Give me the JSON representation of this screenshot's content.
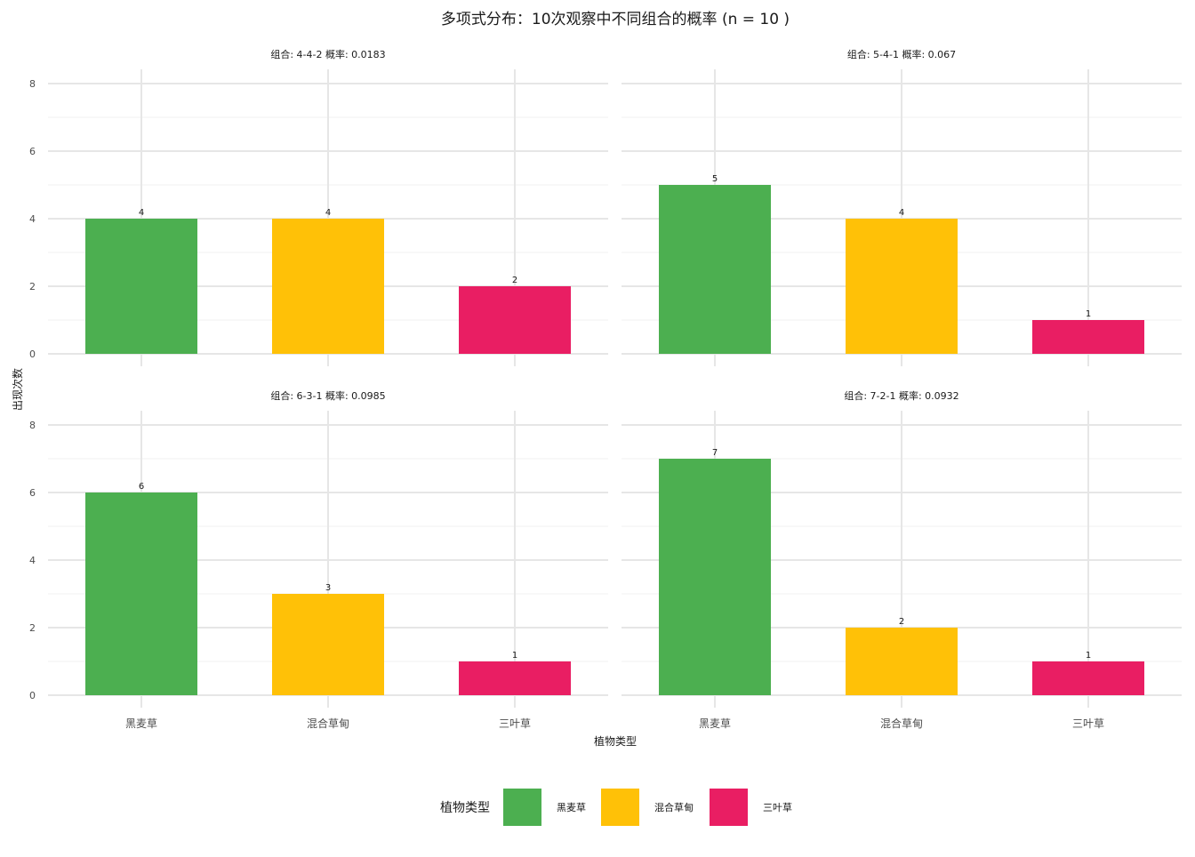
{
  "chart_data": {
    "type": "bar",
    "title": "多项式分布：10次观察中不同组合的概率 (n = 10 )",
    "xlabel": "植物类型",
    "ylabel": "出现次数",
    "categories": [
      "黑麦草",
      "混合草甸",
      "三叶草"
    ],
    "colors": [
      "#4CAF50",
      "#FFC107",
      "#E91E63"
    ],
    "ylim": [
      0,
      8
    ],
    "y_ticks": [
      "0",
      "2",
      "4",
      "6",
      "8"
    ],
    "grid": true,
    "legend": {
      "title": "植物类型",
      "position": "bottom",
      "entries": [
        "黑麦草",
        "混合草甸",
        "三叶草"
      ]
    },
    "facets": [
      {
        "label": "组合: 4-4-2  概率: 0.0183",
        "values": [
          4,
          4,
          2
        ]
      },
      {
        "label": "组合: 5-4-1  概率: 0.067",
        "values": [
          5,
          4,
          1
        ]
      },
      {
        "label": "组合: 6-3-1  概率: 0.0985",
        "values": [
          6,
          3,
          1
        ]
      },
      {
        "label": "组合: 7-2-1  概率: 0.0932",
        "values": [
          7,
          2,
          1
        ]
      }
    ]
  }
}
